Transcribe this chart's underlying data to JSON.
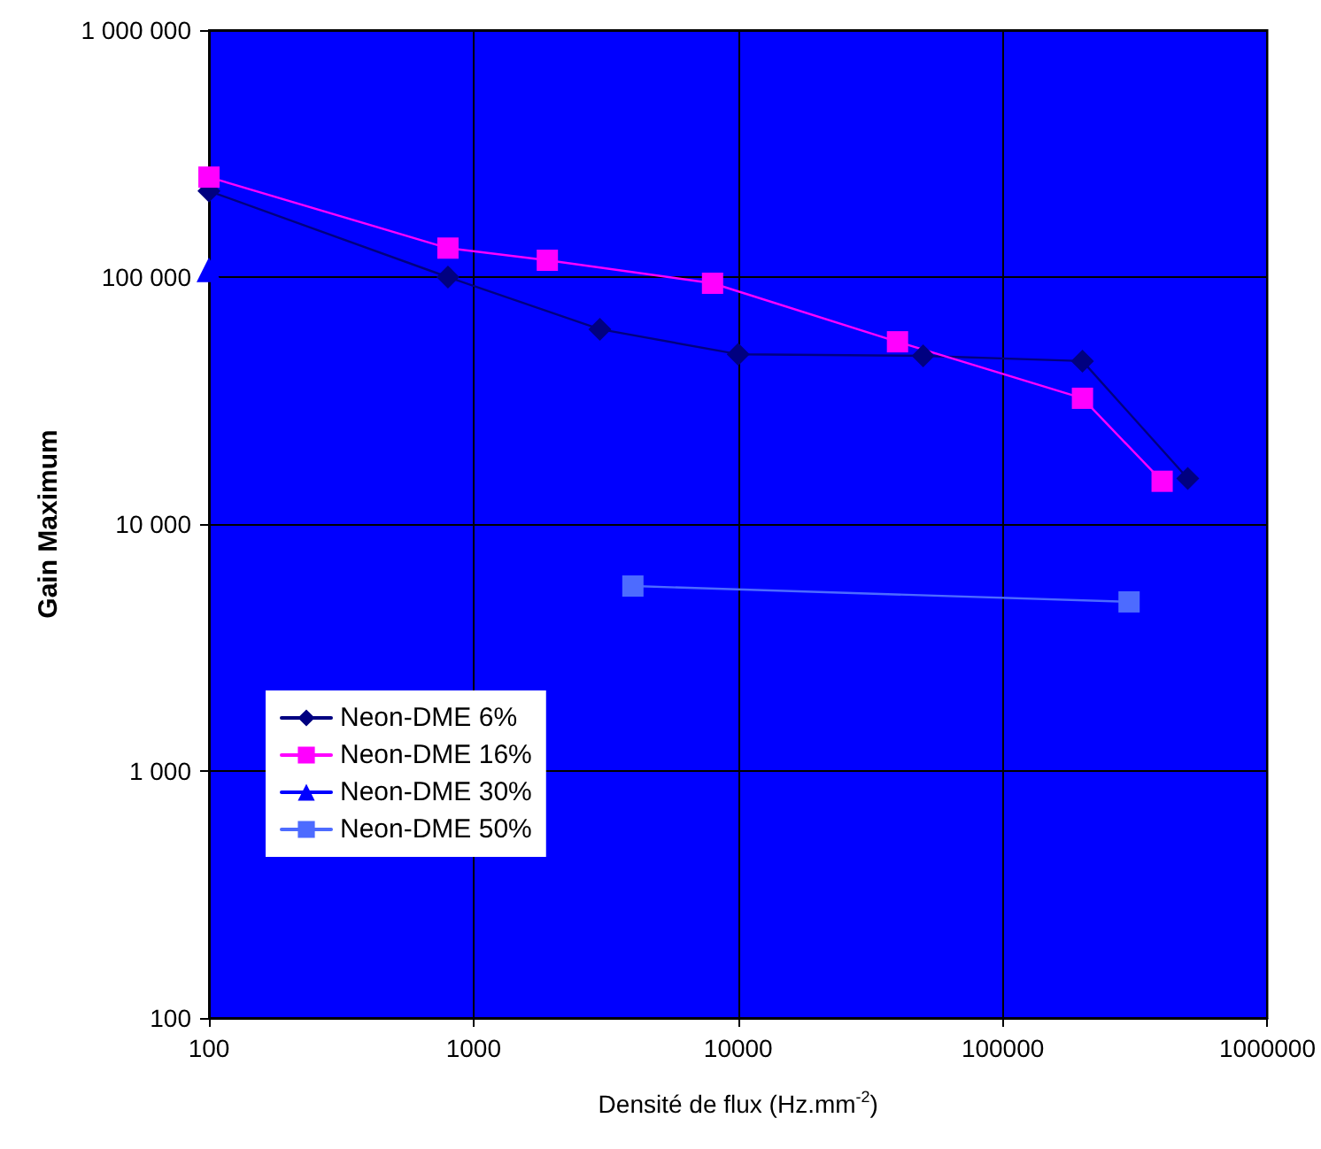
{
  "chart_data": {
    "type": "line",
    "xlabel": "Densité de flux (Hz.mm$^{-2}$)",
    "ylabel": "Gain Maximum",
    "log": "xy",
    "grid": true,
    "legend": "bottom left",
    "line_style": "solid",
    "xlim": [
      100,
      1000000
    ],
    "xticks": [
      100,
      1000,
      10000,
      100000,
      1000000
    ],
    "ylim": [
      100,
      1000000
    ],
    "yticks": [
      {
        "value": 100,
        "label": "100"
      },
      {
        "value": 1000,
        "label": "1 000"
      },
      {
        "value": 10000,
        "label": "10 000"
      },
      {
        "value": 100000,
        "label": "100 000"
      },
      {
        "value": 1000000,
        "label": "1 000 000"
      }
    ],
    "series": [
      {
        "name": "Neon-DME 6%",
        "color": "#000080",
        "marker": "diamond",
        "x": [
          100,
          800,
          3000,
          10000,
          50000,
          200000,
          500000
        ],
        "values": [
          223000,
          100000,
          61500,
          48700,
          48000,
          45700,
          15300
        ]
      },
      {
        "name": "Neon-DME 16%",
        "color": "#ff00ff",
        "marker": "square",
        "x": [
          100,
          800,
          1900,
          8000,
          40000,
          200000,
          400000
        ],
        "values": [
          254000,
          131000,
          117000,
          94400,
          54700,
          32300,
          14900
        ]
      },
      {
        "name": "Neon-DME 30%",
        "color": "#0000ff",
        "marker": "triangle",
        "x": [
          100
        ],
        "values": [
          107000
        ]
      },
      {
        "name": "Neon-DME 50%",
        "color": "#4d6bff",
        "marker": "square",
        "x": [
          4000,
          300000
        ],
        "values": [
          5610,
          4840
        ]
      }
    ]
  }
}
